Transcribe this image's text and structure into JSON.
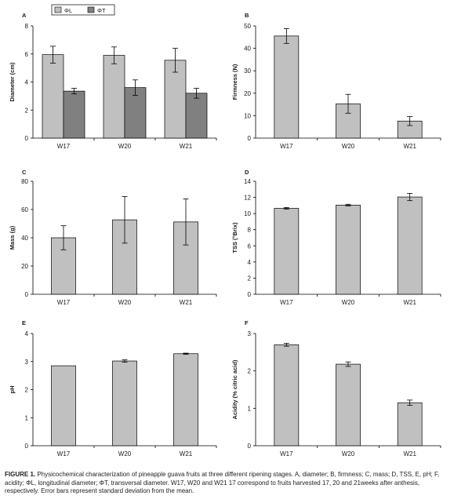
{
  "caption": {
    "label": "FIGURE 1.",
    "text": " Physicochemical characterization of pineapple guava fruits at three different ripening stages. A, diameter; B, firmness; C, mass; D, TSS, E, pH; F, acidity; ΦL, longitudinal diameter; ΦT, transversal diameter. W17, W20 and W21 17 correspond to fruits harvested 17, 20 and 21weeks after anthesis, respectively. Error bars represent standard deviation from the mean."
  },
  "legend": {
    "entries": [
      {
        "label": "ΦL",
        "color": "#c0c0c0"
      },
      {
        "label": "ΦT",
        "color": "#808080"
      }
    ]
  },
  "chart_data": [
    {
      "type": "bar",
      "panel": "A",
      "ylabel": "Diameter (cm)",
      "ylim": [
        0,
        8
      ],
      "yticks": [
        0,
        2,
        4,
        6,
        8
      ],
      "categories": [
        "W17",
        "W20",
        "W21"
      ],
      "series": [
        {
          "name": "ΦL",
          "color": "#c0c0c0",
          "values": [
            5.95,
            5.9,
            5.55
          ],
          "errors": [
            0.6,
            0.6,
            0.85
          ]
        },
        {
          "name": "ΦT",
          "color": "#808080",
          "values": [
            3.35,
            3.6,
            3.2
          ],
          "errors": [
            0.2,
            0.55,
            0.35
          ]
        }
      ]
    },
    {
      "type": "bar",
      "panel": "B",
      "ylabel": "Firmness (N)",
      "ylim": [
        0,
        50
      ],
      "yticks": [
        0,
        10,
        20,
        30,
        40,
        50
      ],
      "categories": [
        "W17",
        "W20",
        "W21"
      ],
      "series": [
        {
          "color": "#c0c0c0",
          "values": [
            45.5,
            15.3,
            7.6
          ],
          "errors": [
            3.3,
            4.2,
            2.0
          ]
        }
      ]
    },
    {
      "type": "bar",
      "panel": "C",
      "ylabel": "Mass (g)",
      "ylim": [
        0,
        80
      ],
      "yticks": [
        0,
        20,
        40,
        60,
        80
      ],
      "categories": [
        "W17",
        "W20",
        "W21"
      ],
      "series": [
        {
          "color": "#c0c0c0",
          "values": [
            40,
            52.7,
            51.2
          ],
          "errors": [
            8.5,
            16.5,
            16.3
          ]
        }
      ]
    },
    {
      "type": "bar",
      "panel": "D",
      "ylabel": "TSS (°Brix)",
      "ylim": [
        0,
        14
      ],
      "yticks": [
        0,
        2,
        4,
        6,
        8,
        10,
        12,
        14
      ],
      "categories": [
        "W17",
        "W20",
        "W21"
      ],
      "series": [
        {
          "color": "#c0c0c0",
          "values": [
            10.65,
            11.05,
            12.05
          ],
          "errors": [
            0.1,
            0.1,
            0.45
          ]
        }
      ]
    },
    {
      "type": "bar",
      "panel": "E",
      "ylabel": "pH",
      "ylim": [
        0,
        4
      ],
      "yticks": [
        0,
        1,
        2,
        3,
        4
      ],
      "categories": [
        "W17",
        "W20",
        "W21"
      ],
      "series": [
        {
          "color": "#c0c0c0",
          "values": [
            2.85,
            3.02,
            3.28
          ],
          "errors": [
            0,
            0.04,
            0.02
          ]
        }
      ]
    },
    {
      "type": "bar",
      "panel": "F",
      "ylabel": "Acidity (% citric acid)",
      "ylim": [
        0,
        3
      ],
      "yticks": [
        0,
        1,
        2,
        3
      ],
      "categories": [
        "W17",
        "W20",
        "W21"
      ],
      "series": [
        {
          "color": "#c0c0c0",
          "values": [
            2.7,
            2.18,
            1.15
          ],
          "errors": [
            0.04,
            0.06,
            0.07
          ]
        }
      ]
    }
  ]
}
